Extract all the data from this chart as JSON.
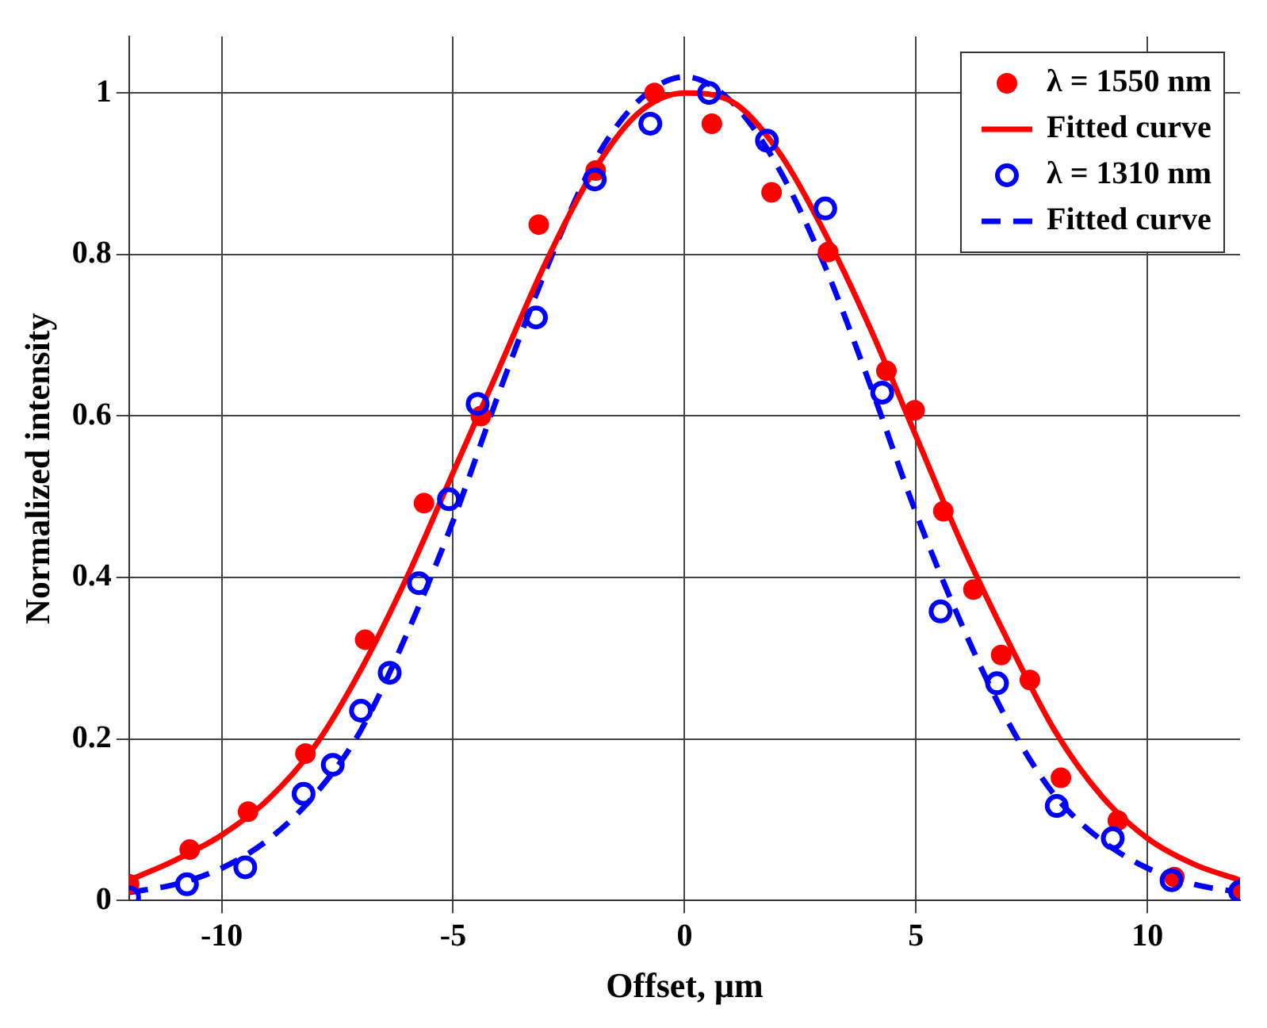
{
  "chart_data": {
    "type": "scatter",
    "xlabel": "Offset, μm",
    "ylabel": "Normalized intensity",
    "xlim": [
      -12,
      12
    ],
    "xticks": [
      -10,
      -5,
      0,
      5,
      10
    ],
    "ylim": [
      0,
      1.07
    ],
    "yticks": [
      0,
      0.2,
      0.4,
      0.6,
      0.8,
      1
    ],
    "grid": true,
    "legend": "top right",
    "series": [
      {
        "name": "λ = 1550 nm",
        "marker": "circle",
        "color": "#ff0000",
        "x": [
          -12,
          -10.69,
          -9.43,
          -8.19,
          -6.9,
          -5.63,
          -4.4,
          -3.15,
          -1.92,
          -0.65,
          0.59,
          1.88,
          3.1,
          4.36,
          4.97,
          5.59,
          6.24,
          6.84,
          7.46,
          8.13,
          9.36,
          10.58,
          12
        ],
        "values": [
          0.02,
          0.063,
          0.11,
          0.182,
          0.323,
          0.492,
          0.6,
          0.837,
          0.904,
          1.0,
          0.962,
          0.877,
          0.803,
          0.656,
          0.607,
          0.482,
          0.385,
          0.304,
          0.273,
          0.152,
          0.099,
          0.029,
          0.012
        ]
      },
      {
        "name": "Fitted curve",
        "type": "line",
        "line_style": "solid",
        "marker": "none",
        "color": "#ff0000",
        "x": [
          -12,
          -11,
          -10,
          -9,
          -8,
          -7,
          -6,
          -5,
          -4,
          -3,
          -2,
          -1,
          0,
          1,
          2,
          3,
          4,
          5,
          6,
          7,
          8,
          9,
          10,
          11,
          12
        ],
        "values": [
          0.025,
          0.05,
          0.081,
          0.125,
          0.19,
          0.285,
          0.4,
          0.53,
          0.66,
          0.79,
          0.9,
          0.975,
          1.0,
          0.99,
          0.93,
          0.83,
          0.71,
          0.575,
          0.44,
          0.32,
          0.21,
          0.13,
          0.077,
          0.045,
          0.025
        ]
      },
      {
        "name": "λ = 1310 nm",
        "marker": "circle",
        "color": "#0000ff",
        "x": [
          -12,
          -10.75,
          -9.49,
          -8.23,
          -7.6,
          -6.99,
          -6.37,
          -5.74,
          -5.09,
          -4.47,
          -3.21,
          -1.94,
          -0.74,
          0.53,
          1.78,
          3.04,
          4.27,
          5.53,
          6.75,
          8.04,
          9.25,
          10.52,
          12
        ],
        "values": [
          0.004,
          0.02,
          0.041,
          0.132,
          0.168,
          0.235,
          0.282,
          0.393,
          0.497,
          0.615,
          0.722,
          0.893,
          0.962,
          1.0,
          0.941,
          0.857,
          0.629,
          0.358,
          0.269,
          0.117,
          0.077,
          0.025,
          0.011
        ]
      },
      {
        "name": "Fitted curve",
        "type": "line",
        "line_style": "dashed",
        "marker": "none",
        "color": "#0000ff",
        "x": [
          -12,
          -11,
          -10,
          -9,
          -8,
          -7,
          -6,
          -5,
          -4,
          -3,
          -2,
          -1,
          0,
          1,
          2,
          3,
          4,
          5,
          6,
          7,
          8,
          9,
          10,
          11,
          12
        ],
        "values": [
          0.01,
          0.02,
          0.04,
          0.075,
          0.13,
          0.21,
          0.33,
          0.47,
          0.63,
          0.78,
          0.91,
          0.99,
          1.02,
          0.99,
          0.91,
          0.79,
          0.64,
          0.48,
          0.34,
          0.22,
          0.13,
          0.075,
          0.04,
          0.02,
          0.01
        ]
      }
    ]
  }
}
